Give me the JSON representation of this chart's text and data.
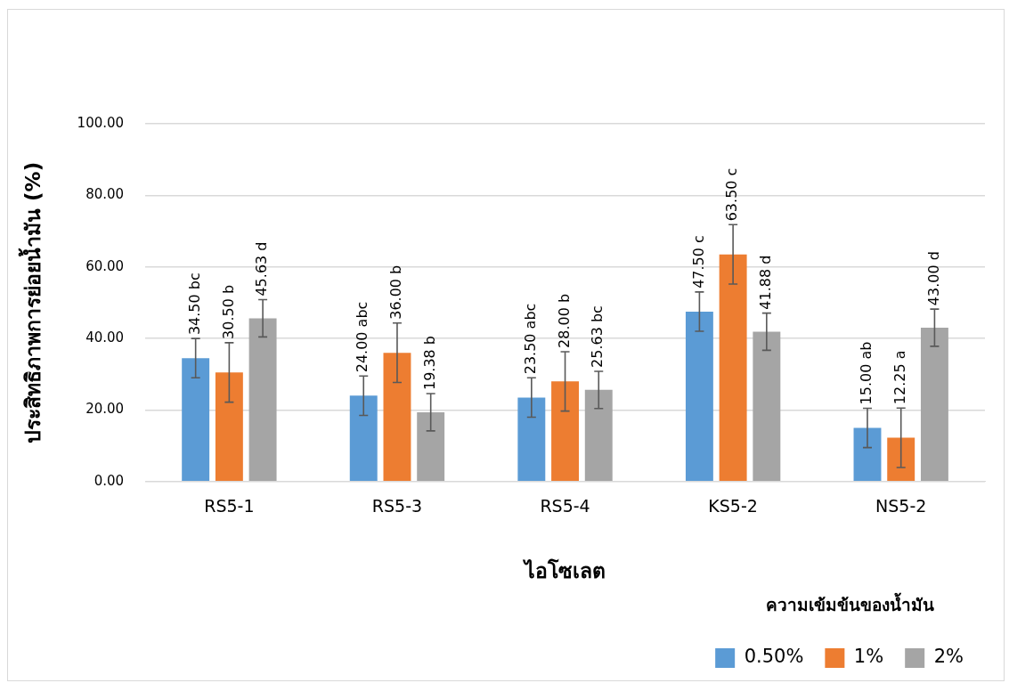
{
  "chart_data": {
    "type": "bar",
    "xlabel": "ไอโซเลต",
    "ylabel": "ประสิทธิภาพการย่อยน้ำมัน (%)",
    "legend_title": "ความเข้มข้นของน้ำมัน",
    "categories": [
      "RS5-1",
      "RS5-3",
      "RS5-4",
      "KS5-2",
      "NS5-2"
    ],
    "series": [
      {
        "name": "0.50%",
        "color": "#5b9bd5",
        "values": [
          34.5,
          24.0,
          23.5,
          47.5,
          15.0
        ],
        "errors": [
          5.5,
          5.5,
          5.5,
          5.5,
          5.5
        ],
        "value_labels": [
          "34.50 bc",
          "24.00 abc",
          "23.50 abc",
          "47.50 c",
          "15.00 ab"
        ]
      },
      {
        "name": "1%",
        "color": "#ed7d31",
        "values": [
          30.5,
          36.0,
          28.0,
          63.5,
          12.25
        ],
        "errors": [
          8.3,
          8.3,
          8.3,
          8.3,
          8.3
        ],
        "value_labels": [
          "30.50 b",
          "36.00 b",
          "28.00 b",
          "63.50 c",
          "12.25 a"
        ]
      },
      {
        "name": "2%",
        "color": "#a5a5a5",
        "values": [
          45.63,
          19.38,
          25.63,
          41.88,
          43.0
        ],
        "errors": [
          5.2,
          5.2,
          5.2,
          5.2,
          5.2
        ],
        "value_labels": [
          "45.63 d",
          "19.38 b",
          "25.63 bc",
          "41.88 d",
          "43.00 d"
        ]
      }
    ],
    "ylim": [
      0,
      100
    ],
    "yticks": [
      {
        "value": 0,
        "label": "0.00"
      },
      {
        "value": 20,
        "label": "20.00"
      },
      {
        "value": 40,
        "label": "40.00"
      },
      {
        "value": 60,
        "label": "60.00"
      },
      {
        "value": 80,
        "label": "80.00"
      },
      {
        "value": 100,
        "label": "100.00"
      }
    ],
    "grid": "y",
    "legend": "bottom right"
  }
}
